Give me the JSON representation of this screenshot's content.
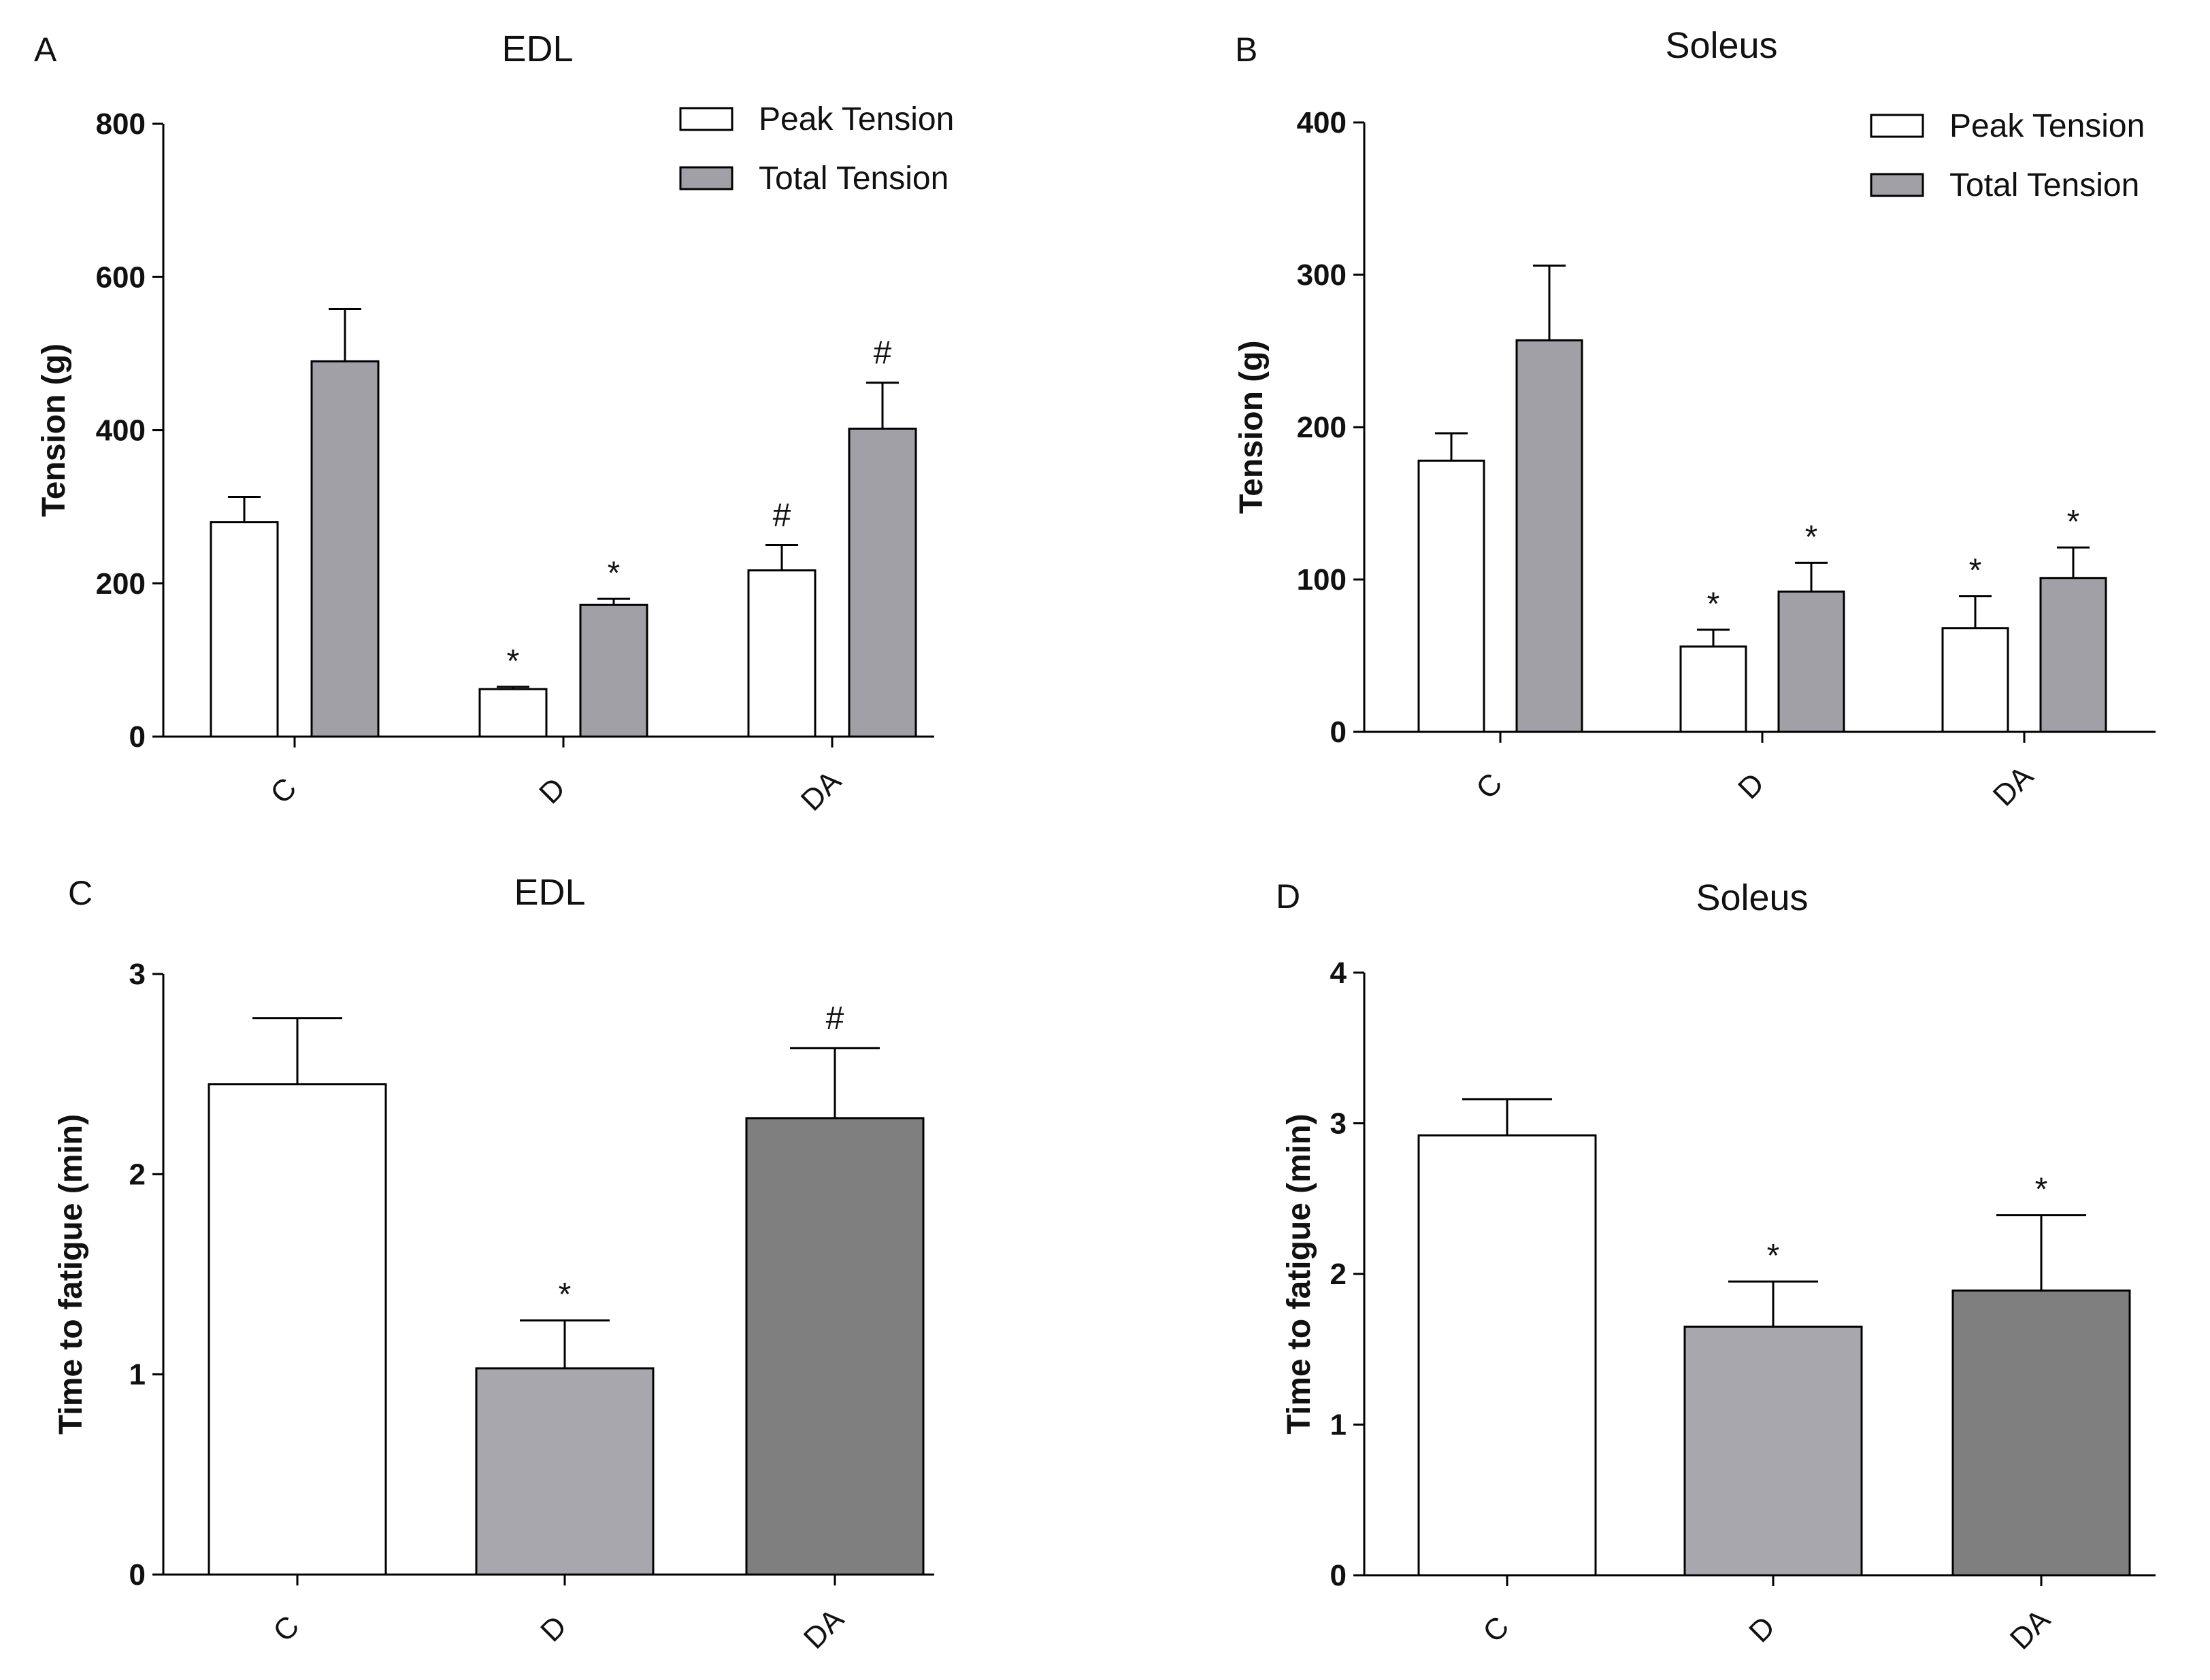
{
  "colors": {
    "peak": "#ffffff",
    "total": "#a0a0a6",
    "C": "#ffffff",
    "D": "#a7a7ad",
    "DA": "#7f7f7f",
    "axis": "#000000"
  },
  "chart_data": [
    {
      "id": "A",
      "panel_letter": "A",
      "type": "bar",
      "title": "EDL",
      "xlabel": "",
      "ylabel": "Tension (g)",
      "ylim": [
        0,
        800
      ],
      "yticks": [
        0,
        200,
        400,
        600,
        800
      ],
      "ytick_labels": [
        "0",
        "200",
        "400",
        "600",
        "800"
      ],
      "categories": [
        "C",
        "D",
        "DA"
      ],
      "legend": [
        "Peak Tension",
        "Total Tension"
      ],
      "legend_position": "top-right",
      "series": [
        {
          "name": "Peak Tension",
          "values": [
            280,
            62,
            217
          ],
          "errors": [
            33,
            3,
            33
          ],
          "marks": [
            "",
            "*",
            "#"
          ]
        },
        {
          "name": "Total Tension",
          "values": [
            490,
            172,
            402
          ],
          "errors": [
            68,
            8,
            60
          ],
          "marks": [
            "",
            "*",
            "#"
          ]
        }
      ]
    },
    {
      "id": "B",
      "panel_letter": "B",
      "type": "bar",
      "title": "Soleus",
      "xlabel": "",
      "ylabel": "Tension (g)",
      "ylim": [
        0,
        400
      ],
      "yticks": [
        0,
        100,
        200,
        300,
        400
      ],
      "ytick_labels": [
        "0",
        "100",
        "200",
        "300",
        "400"
      ],
      "categories": [
        "C",
        "D",
        "DA"
      ],
      "legend": [
        "Peak Tension",
        "Total Tension"
      ],
      "legend_position": "top-right",
      "series": [
        {
          "name": "Peak Tension",
          "values": [
            178,
            56,
            68
          ],
          "errors": [
            18,
            11,
            21
          ],
          "marks": [
            "",
            "*",
            "*"
          ]
        },
        {
          "name": "Total Tension",
          "values": [
            257,
            92,
            101
          ],
          "errors": [
            49,
            19,
            20
          ],
          "marks": [
            "",
            "*",
            "*"
          ]
        }
      ]
    },
    {
      "id": "C",
      "panel_letter": "C",
      "type": "bar",
      "title": "EDL",
      "xlabel": "",
      "ylabel": "Time to fatigue (min)",
      "ylim": [
        0,
        3
      ],
      "yticks": [
        0,
        1,
        2,
        3
      ],
      "ytick_labels": [
        "0",
        "1",
        "2",
        "3"
      ],
      "categories": [
        "C",
        "D",
        "DA"
      ],
      "values": [
        2.45,
        1.03,
        2.28
      ],
      "errors": [
        0.33,
        0.24,
        0.35
      ],
      "marks": [
        "",
        "*",
        "#"
      ]
    },
    {
      "id": "D",
      "panel_letter": "D",
      "type": "bar",
      "title": "Soleus",
      "xlabel": "",
      "ylabel": "Time to fatigue (min)",
      "ylim": [
        0,
        4
      ],
      "yticks": [
        0,
        1,
        2,
        3,
        4
      ],
      "ytick_labels": [
        "0",
        "1",
        "2",
        "3",
        "4"
      ],
      "categories": [
        "C",
        "D",
        "DA"
      ],
      "values": [
        2.92,
        1.65,
        1.89
      ],
      "errors": [
        0.24,
        0.3,
        0.5
      ],
      "marks": [
        "",
        "*",
        "*"
      ]
    }
  ]
}
